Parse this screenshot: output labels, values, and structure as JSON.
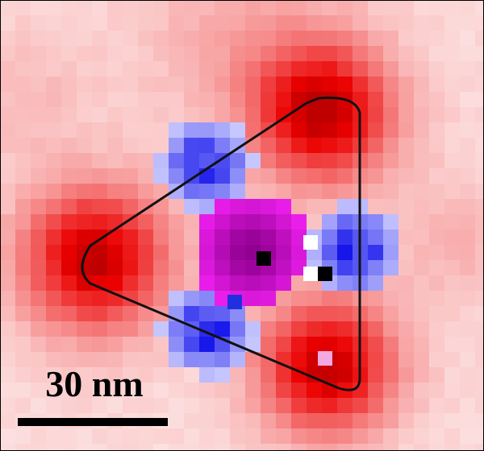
{
  "scale_bar": {
    "label": "30 nm"
  }
}
